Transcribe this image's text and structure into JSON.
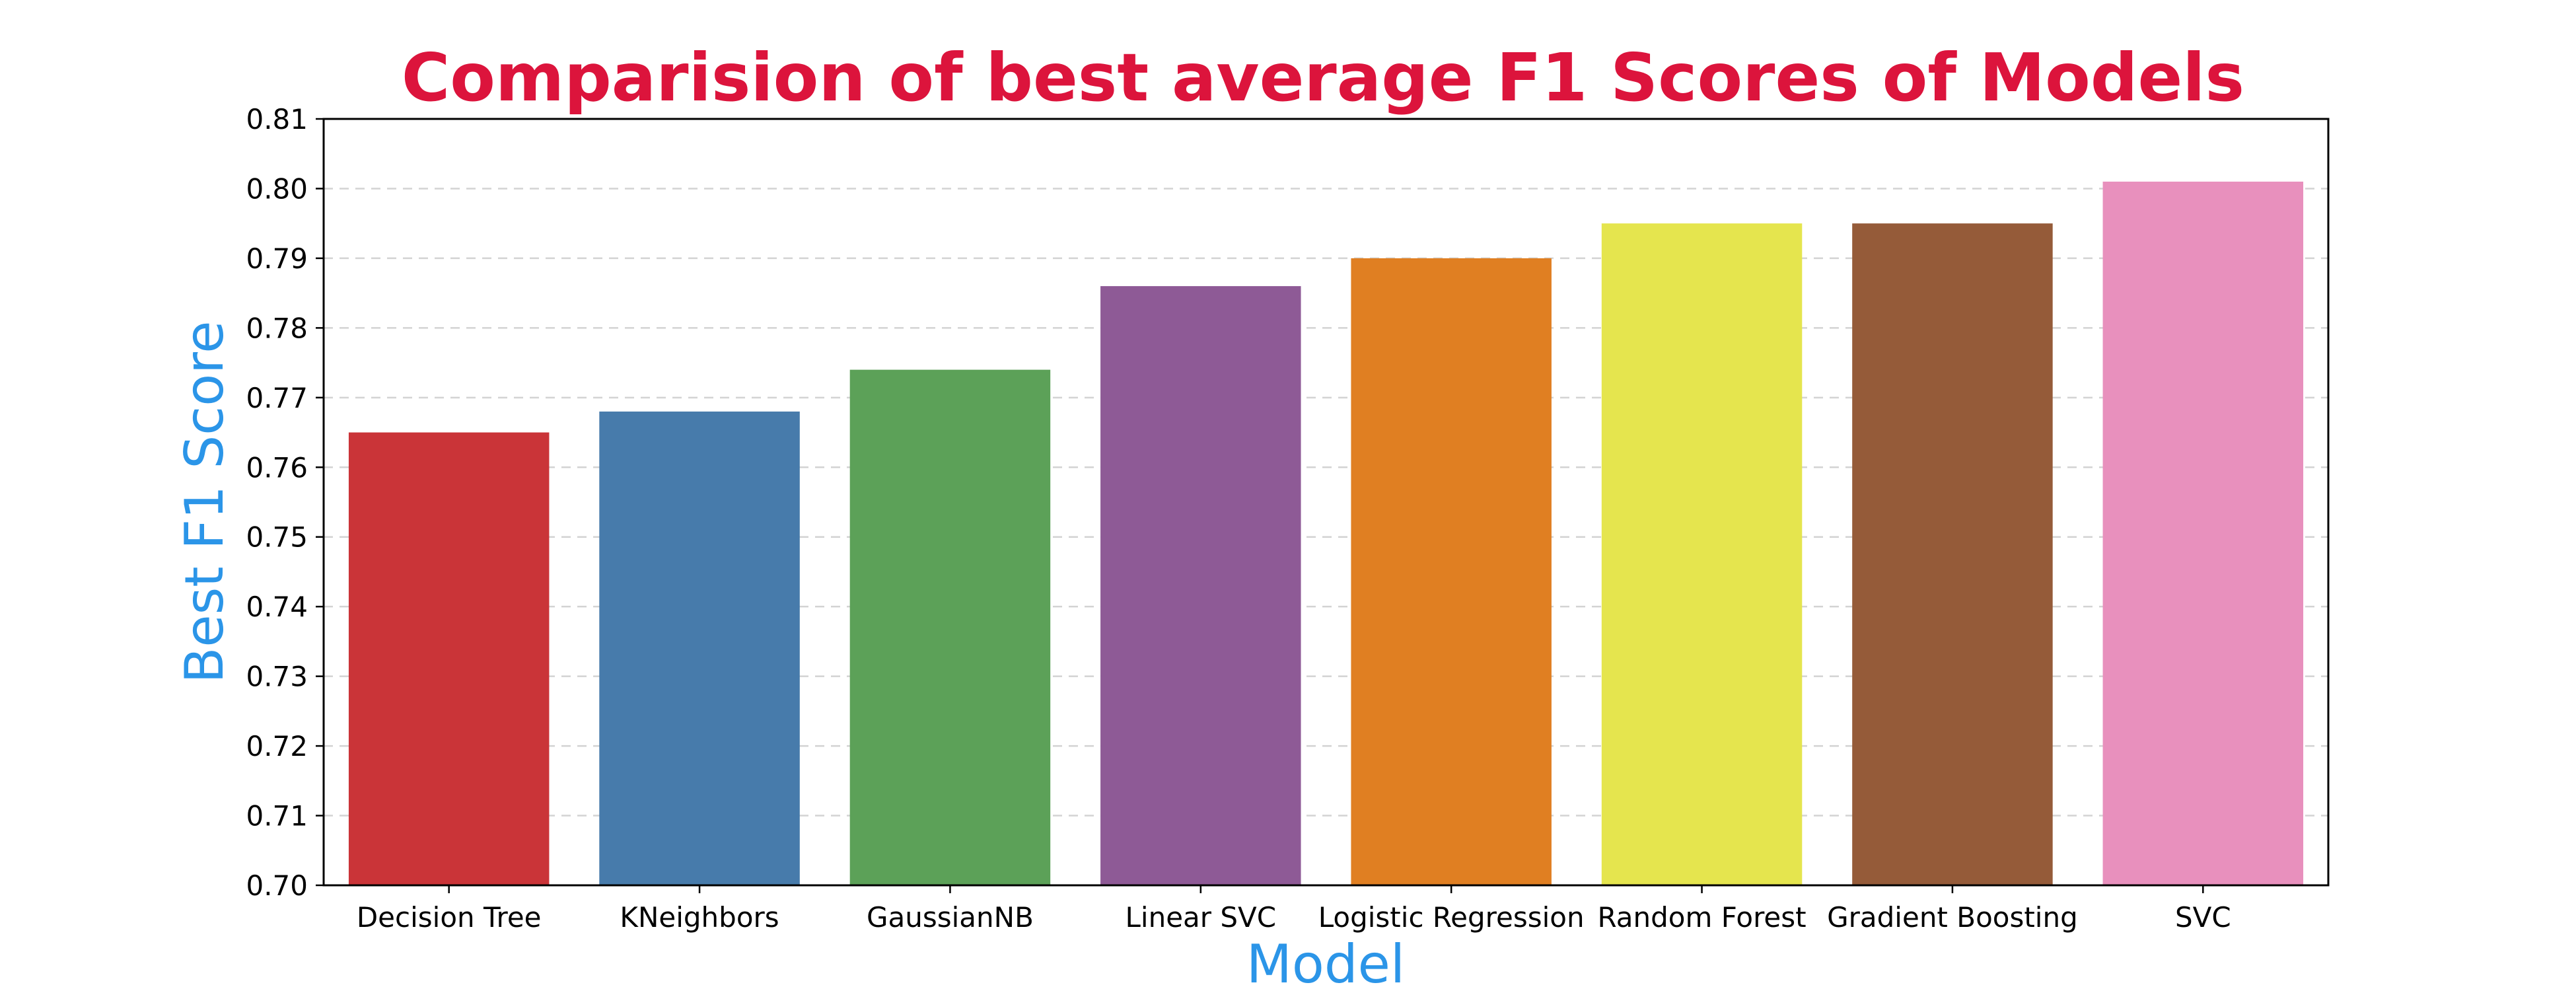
{
  "chart_data": {
    "type": "bar",
    "title": "Comparision of best average F1 Scores of Models",
    "xlabel": "Model",
    "ylabel": "Best F1 Score",
    "categories": [
      "Decision Tree",
      "KNeighbors",
      "GaussianNB",
      "Linear SVC",
      "Logistic Regression",
      "Random Forest",
      "Gradient Boosting",
      "SVC"
    ],
    "values": [
      0.765,
      0.768,
      0.774,
      0.786,
      0.79,
      0.795,
      0.795,
      0.801
    ],
    "ylim": [
      0.7,
      0.81
    ],
    "yticks": [
      "0.70",
      "0.71",
      "0.72",
      "0.73",
      "0.74",
      "0.75",
      "0.76",
      "0.77",
      "0.78",
      "0.79",
      "0.80",
      "0.81"
    ],
    "grid": "y-dashed",
    "legend": "none",
    "colors": [
      "#ca3438",
      "#477bab",
      "#5ca158",
      "#8e5a96",
      "#e07f22",
      "#e5e54e",
      "#955b39",
      "#e890bd"
    ],
    "title_color": "#dc143c",
    "axis_label_color": "#2b95e8"
  }
}
